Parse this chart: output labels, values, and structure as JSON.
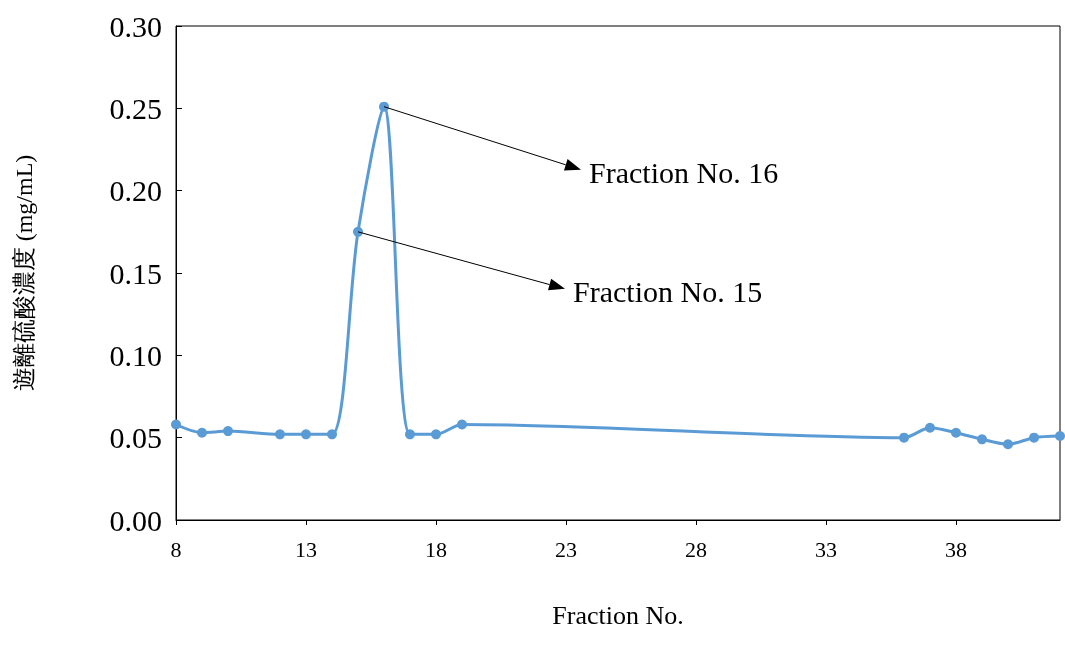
{
  "chart_data": {
    "type": "line",
    "xlabel": "Fraction No.",
    "ylabel": "遊離硫酸濃度 (mg/mL)",
    "x": [
      8,
      9,
      10,
      12,
      13,
      14,
      15,
      16,
      17,
      18,
      19,
      36,
      37,
      38,
      39,
      40,
      41,
      42
    ],
    "series": [
      {
        "color": "#5b9bd5",
        "values": [
          0.058,
          0.053,
          0.054,
          0.052,
          0.052,
          0.052,
          0.175,
          0.251,
          0.052,
          0.052,
          0.058,
          0.05,
          0.056,
          0.053,
          0.049,
          0.046,
          0.05,
          0.051
        ]
      }
    ],
    "xlim": [
      8,
      42
    ],
    "xticks": [
      8,
      13,
      18,
      23,
      28,
      33,
      38
    ],
    "ylim": [
      0,
      0.3
    ],
    "yticks": [
      {
        "value": 0,
        "label": "0.00"
      },
      {
        "value": 0.05,
        "label": "0.05"
      },
      {
        "value": 0.1,
        "label": "0.10"
      },
      {
        "value": 0.15,
        "label": "0.15"
      },
      {
        "value": 0.2,
        "label": "0.20"
      },
      {
        "value": 0.25,
        "label": "0.25"
      },
      {
        "value": 0.3,
        "label": "0.30"
      }
    ],
    "grid": false,
    "marker": "circle",
    "line_style": "solid",
    "annotations": [
      {
        "text": "Fraction No. 16",
        "x": 16,
        "y": 0.251
      },
      {
        "text": "Fraction No. 15",
        "x": 15,
        "y": 0.175
      }
    ]
  }
}
